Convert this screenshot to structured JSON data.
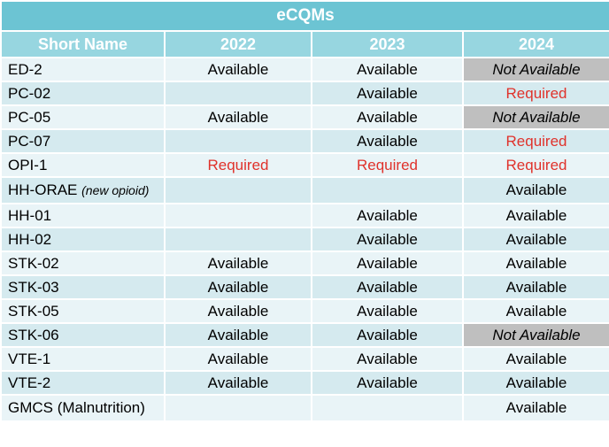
{
  "table": {
    "title": "eCQMs",
    "headers": [
      "Short Name",
      "2022",
      "2023",
      "2024"
    ],
    "rows": [
      {
        "name": "ED-2",
        "note": "",
        "y2022": "Available",
        "y2023": "Available",
        "y2024": "Not Available"
      },
      {
        "name": "PC-02",
        "note": "",
        "y2022": "",
        "y2023": "Available",
        "y2024": "Required"
      },
      {
        "name": "PC-05",
        "note": "",
        "y2022": "Available",
        "y2023": "Available",
        "y2024": "Not Available"
      },
      {
        "name": "PC-07",
        "note": "",
        "y2022": "",
        "y2023": "Available",
        "y2024": "Required"
      },
      {
        "name": "OPI-1",
        "note": "",
        "y2022": "Required",
        "y2023": "Required",
        "y2024": "Required"
      },
      {
        "name": "HH-ORAE",
        "note": "(new opioid)",
        "y2022": "",
        "y2023": "",
        "y2024": "Available"
      },
      {
        "name": "HH-01",
        "note": "",
        "y2022": "",
        "y2023": "Available",
        "y2024": "Available"
      },
      {
        "name": "HH-02",
        "note": "",
        "y2022": "",
        "y2023": "Available",
        "y2024": "Available"
      },
      {
        "name": "STK-02",
        "note": "",
        "y2022": "Available",
        "y2023": "Available",
        "y2024": "Available"
      },
      {
        "name": "STK-03",
        "note": "",
        "y2022": "Available",
        "y2023": "Available",
        "y2024": "Available"
      },
      {
        "name": "STK-05",
        "note": "",
        "y2022": "Available",
        "y2023": "Available",
        "y2024": "Available"
      },
      {
        "name": "STK-06",
        "note": "",
        "y2022": "Available",
        "y2023": "Available",
        "y2024": "Not Available"
      },
      {
        "name": "VTE-1",
        "note": "",
        "y2022": "Available",
        "y2023": "Available",
        "y2024": "Available"
      },
      {
        "name": "VTE-2",
        "note": "",
        "y2022": "Available",
        "y2023": "Available",
        "y2024": "Available"
      },
      {
        "name": "GMCS (Malnutrition)",
        "note": "",
        "y2022": "",
        "y2023": "",
        "y2024": "Available"
      }
    ]
  },
  "colors": {
    "title_bg": "#6cc4d3",
    "header_bg": "#97d6e0",
    "row_light": "#e9f4f7",
    "row_dark": "#d5eaef",
    "required_text": "#e0322b",
    "not_available_bg": "#bfbfbf"
  }
}
